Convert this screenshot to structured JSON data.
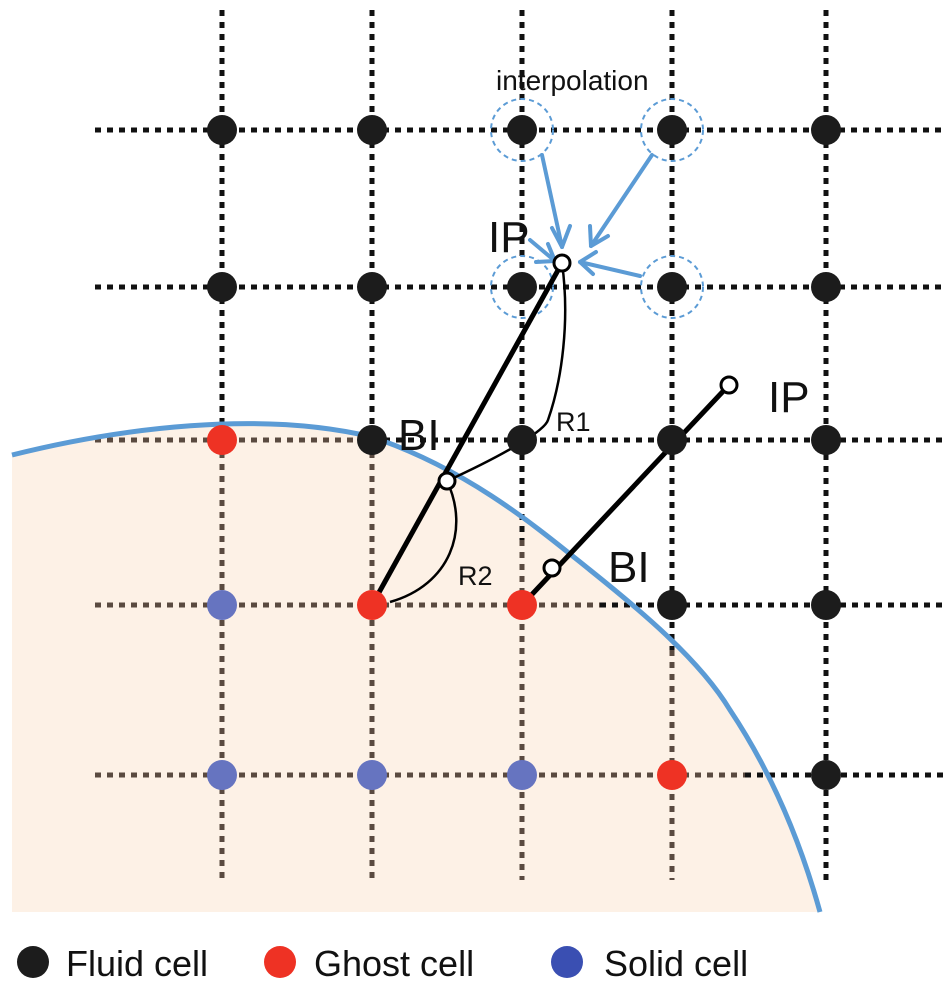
{
  "colors": {
    "fluid": "#1c1c1c",
    "ghost": "#ee3224",
    "solid": "#6674c0",
    "solid_legend": "#3a4fb2",
    "boundary": "#5b9bd5",
    "interp_arrow": "#5b9bd5",
    "solid_region": "#fdf1e6",
    "grid_fluid": "#111111",
    "grid_solid": "#5a4a40"
  },
  "labels": {
    "interpolation": "interpolation",
    "ip_top": "IP",
    "ip_right": "IP",
    "bi_left": "BI",
    "bi_right": "BI",
    "r1": "R1",
    "r2": "R2"
  },
  "legend": [
    {
      "label": "Fluid cell",
      "color_key": "fluid"
    },
    {
      "label": "Ghost cell",
      "color_key": "ghost"
    },
    {
      "label": "Solid cell",
      "color_key": "solid_legend"
    }
  ]
}
